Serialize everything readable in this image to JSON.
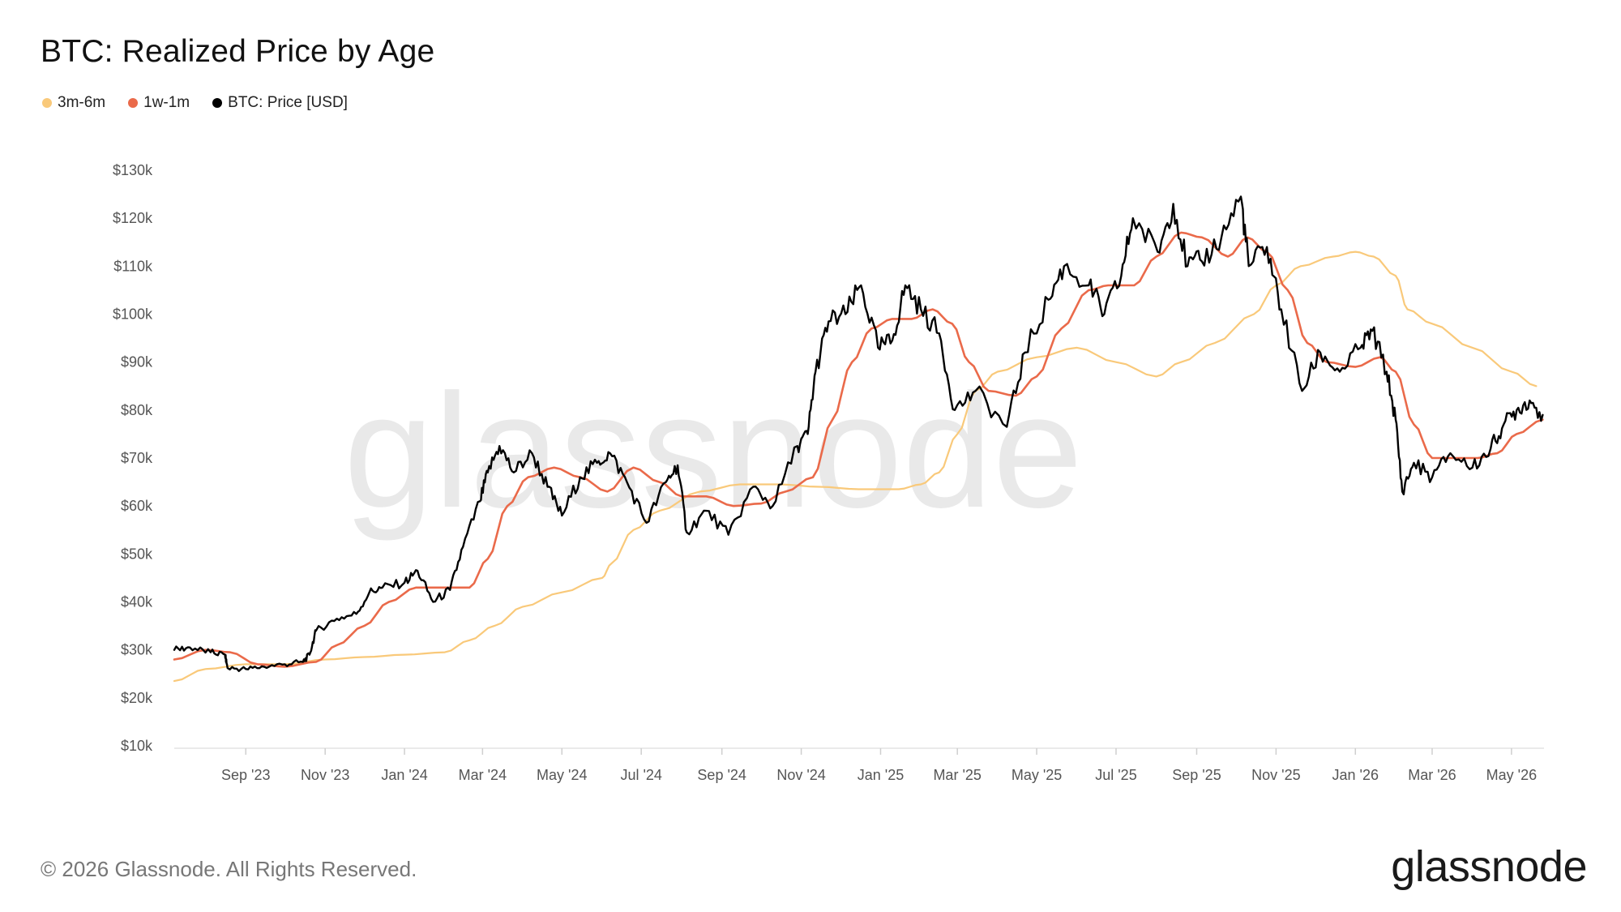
{
  "title": "BTC: Realized Price by Age",
  "legend": [
    {
      "label": "3m-6m",
      "color": "#f9c97a"
    },
    {
      "label": "1w-1m",
      "color": "#ea6a4a"
    },
    {
      "label": "BTC: Price [USD]",
      "color": "#000000"
    }
  ],
  "watermark": "glassnode",
  "footer": {
    "copyright": "© 2026 Glassnode. All Rights Reserved.",
    "logo": "glassnode"
  },
  "chart_data": {
    "type": "line",
    "title": "BTC: Realized Price by Age",
    "x_unit": "month",
    "x_start": "2023-07",
    "x_end": "2026-05",
    "ylim": [
      10000,
      130000
    ],
    "y_ticks": [
      {
        "value": 10000,
        "label": "$10k"
      },
      {
        "value": 20000,
        "label": "$20k"
      },
      {
        "value": 30000,
        "label": "$30k"
      },
      {
        "value": 40000,
        "label": "$40k"
      },
      {
        "value": 50000,
        "label": "$50k"
      },
      {
        "value": 60000,
        "label": "$60k"
      },
      {
        "value": 70000,
        "label": "$70k"
      },
      {
        "value": 80000,
        "label": "$80k"
      },
      {
        "value": 90000,
        "label": "$90k"
      },
      {
        "value": 100000,
        "label": "$100k"
      },
      {
        "value": 110000,
        "label": "$110k"
      },
      {
        "value": 120000,
        "label": "$120k"
      },
      {
        "value": 130000,
        "label": "$130k"
      }
    ],
    "x_ticks": [
      {
        "value": "2023-09",
        "label": "Sep '23"
      },
      {
        "value": "2023-11",
        "label": "Nov '23"
      },
      {
        "value": "2024-01",
        "label": "Jan '24"
      },
      {
        "value": "2024-03",
        "label": "Mar '24"
      },
      {
        "value": "2024-05",
        "label": "May '24"
      },
      {
        "value": "2024-07",
        "label": "Jul '24"
      },
      {
        "value": "2024-09",
        "label": "Sep '24"
      },
      {
        "value": "2024-11",
        "label": "Nov '24"
      },
      {
        "value": "2025-01",
        "label": "Jan '25"
      },
      {
        "value": "2025-03",
        "label": "Mar '25"
      },
      {
        "value": "2025-05",
        "label": "May '25"
      },
      {
        "value": "2025-07",
        "label": "Jul '25"
      },
      {
        "value": "2025-09",
        "label": "Sep '25"
      },
      {
        "value": "2025-11",
        "label": "Nov '25"
      },
      {
        "value": "2026-01",
        "label": "Jan '26"
      },
      {
        "value": "2026-03",
        "label": "Mar '26"
      },
      {
        "value": "2026-05",
        "label": "May '26"
      }
    ],
    "grid": false,
    "legend_position": "top-left",
    "series": [
      {
        "name": "3m-6m",
        "color": "#f9c97a",
        "width": 2.2,
        "points": [
          [
            "2023-07-08",
            23500
          ],
          [
            "2023-08-01",
            26000
          ],
          [
            "2023-09-01",
            27000
          ],
          [
            "2023-10-01",
            27000
          ],
          [
            "2023-11-01",
            28000
          ],
          [
            "2023-12-01",
            28500
          ],
          [
            "2024-01-01",
            29000
          ],
          [
            "2024-02-01",
            29500
          ],
          [
            "2024-02-20",
            32000
          ],
          [
            "2024-03-10",
            35000
          ],
          [
            "2024-04-01",
            39000
          ],
          [
            "2024-05-01",
            42000
          ],
          [
            "2024-06-01",
            45000
          ],
          [
            "2024-06-08",
            48000
          ],
          [
            "2024-06-25",
            55000
          ],
          [
            "2024-07-15",
            59000
          ],
          [
            "2024-08-15",
            63000
          ],
          [
            "2024-09-15",
            64500
          ],
          [
            "2024-10-15",
            64500
          ],
          [
            "2024-11-15",
            64000
          ],
          [
            "2024-12-15",
            63500
          ],
          [
            "2025-01-15",
            63500
          ],
          [
            "2025-02-01",
            64500
          ],
          [
            "2025-02-15",
            67000
          ],
          [
            "2025-03-01",
            75000
          ],
          [
            "2025-03-15",
            84000
          ],
          [
            "2025-04-01",
            88000
          ],
          [
            "2025-05-01",
            91000
          ],
          [
            "2025-06-01",
            93000
          ],
          [
            "2025-07-01",
            90000
          ],
          [
            "2025-08-01",
            87000
          ],
          [
            "2025-08-20",
            90000
          ],
          [
            "2025-09-15",
            94000
          ],
          [
            "2025-10-15",
            100000
          ],
          [
            "2025-11-01",
            106000
          ],
          [
            "2025-11-20",
            110000
          ],
          [
            "2025-12-15",
            112000
          ],
          [
            "2026-01-01",
            113000
          ],
          [
            "2026-01-15",
            112000
          ],
          [
            "2026-02-01",
            108000
          ],
          [
            "2026-02-10",
            101000
          ],
          [
            "2026-03-01",
            98000
          ],
          [
            "2026-04-01",
            93000
          ],
          [
            "2026-05-01",
            88000
          ],
          [
            "2026-05-20",
            85000
          ]
        ]
      },
      {
        "name": "1w-1m",
        "color": "#ea6a4a",
        "width": 2.6,
        "points": [
          [
            "2023-07-08",
            28000
          ],
          [
            "2023-08-01",
            30000
          ],
          [
            "2023-08-20",
            29500
          ],
          [
            "2023-09-10",
            27000
          ],
          [
            "2023-10-01",
            26500
          ],
          [
            "2023-10-25",
            27500
          ],
          [
            "2023-11-10",
            31000
          ],
          [
            "2023-12-01",
            35000
          ],
          [
            "2023-12-20",
            40000
          ],
          [
            "2024-01-10",
            43000
          ],
          [
            "2024-01-30",
            43000
          ],
          [
            "2024-02-20",
            43000
          ],
          [
            "2024-03-05",
            49000
          ],
          [
            "2024-03-20",
            60000
          ],
          [
            "2024-04-05",
            66000
          ],
          [
            "2024-04-25",
            68000
          ],
          [
            "2024-05-15",
            66000
          ],
          [
            "2024-06-05",
            63000
          ],
          [
            "2024-06-25",
            68000
          ],
          [
            "2024-07-15",
            65000
          ],
          [
            "2024-08-01",
            62000
          ],
          [
            "2024-08-20",
            62000
          ],
          [
            "2024-09-10",
            60000
          ],
          [
            "2024-10-01",
            60500
          ],
          [
            "2024-10-20",
            63000
          ],
          [
            "2024-11-10",
            66000
          ],
          [
            "2024-11-25",
            78000
          ],
          [
            "2024-12-10",
            90000
          ],
          [
            "2024-12-25",
            97000
          ],
          [
            "2025-01-10",
            99000
          ],
          [
            "2025-01-25",
            99000
          ],
          [
            "2025-02-10",
            101000
          ],
          [
            "2025-02-25",
            98000
          ],
          [
            "2025-03-10",
            90000
          ],
          [
            "2025-03-25",
            84000
          ],
          [
            "2025-04-15",
            83000
          ],
          [
            "2025-05-01",
            87000
          ],
          [
            "2025-05-20",
            97000
          ],
          [
            "2025-06-10",
            105000
          ],
          [
            "2025-06-25",
            106000
          ],
          [
            "2025-07-15",
            106000
          ],
          [
            "2025-08-01",
            112000
          ],
          [
            "2025-08-20",
            117000
          ],
          [
            "2025-09-05",
            116000
          ],
          [
            "2025-09-25",
            112000
          ],
          [
            "2025-10-10",
            116000
          ],
          [
            "2025-10-25",
            113000
          ],
          [
            "2025-11-10",
            105000
          ],
          [
            "2025-11-25",
            94000
          ],
          [
            "2025-12-10",
            90000
          ],
          [
            "2026-01-01",
            89000
          ],
          [
            "2026-01-20",
            91000
          ],
          [
            "2026-02-01",
            88000
          ],
          [
            "2026-02-15",
            77000
          ],
          [
            "2026-03-01",
            70000
          ],
          [
            "2026-03-20",
            70000
          ],
          [
            "2026-04-05",
            70000
          ],
          [
            "2026-04-20",
            71000
          ],
          [
            "2026-05-05",
            75000
          ],
          [
            "2026-05-25",
            78000
          ]
        ]
      },
      {
        "name": "BTC: Price [USD]",
        "color": "#000000",
        "width": 2.4,
        "points": [
          [
            "2023-07-08",
            30000
          ],
          [
            "2023-07-20",
            30500
          ],
          [
            "2023-08-05",
            29500
          ],
          [
            "2023-08-16",
            29000
          ],
          [
            "2023-08-18",
            26200
          ],
          [
            "2023-09-01",
            26000
          ],
          [
            "2023-09-15",
            26500
          ],
          [
            "2023-10-01",
            27000
          ],
          [
            "2023-10-15",
            27500
          ],
          [
            "2023-10-20",
            29000
          ],
          [
            "2023-10-25",
            34000
          ],
          [
            "2023-11-10",
            36500
          ],
          [
            "2023-11-25",
            37500
          ],
          [
            "2023-12-05",
            42000
          ],
          [
            "2023-12-15",
            43000
          ],
          [
            "2024-01-01",
            44000
          ],
          [
            "2024-01-11",
            46500
          ],
          [
            "2024-01-23",
            40000
          ],
          [
            "2024-02-05",
            42500
          ],
          [
            "2024-02-15",
            51500
          ],
          [
            "2024-02-28",
            61000
          ],
          [
            "2024-03-05",
            67000
          ],
          [
            "2024-03-14",
            72500
          ],
          [
            "2024-03-25",
            67000
          ],
          [
            "2024-04-08",
            71000
          ],
          [
            "2024-04-20",
            64000
          ],
          [
            "2024-05-01",
            58000
          ],
          [
            "2024-05-15",
            66000
          ],
          [
            "2024-05-28",
            69000
          ],
          [
            "2024-06-07",
            71000
          ],
          [
            "2024-06-20",
            65000
          ],
          [
            "2024-07-05",
            56500
          ],
          [
            "2024-07-20",
            65000
          ],
          [
            "2024-07-29",
            68500
          ],
          [
            "2024-08-05",
            54500
          ],
          [
            "2024-08-20",
            59000
          ],
          [
            "2024-09-06",
            54000
          ],
          [
            "2024-09-25",
            64000
          ],
          [
            "2024-10-10",
            60000
          ],
          [
            "2024-10-29",
            72500
          ],
          [
            "2024-11-06",
            75000
          ],
          [
            "2024-11-12",
            88000
          ],
          [
            "2024-11-22",
            98500
          ],
          [
            "2024-12-05",
            100000
          ],
          [
            "2024-12-17",
            106000
          ],
          [
            "2024-12-30",
            93000
          ],
          [
            "2025-01-10",
            94500
          ],
          [
            "2025-01-20",
            106000
          ],
          [
            "2025-02-01",
            101000
          ],
          [
            "2025-02-15",
            96000
          ],
          [
            "2025-02-27",
            80000
          ],
          [
            "2025-03-15",
            84000
          ],
          [
            "2025-04-08",
            76500
          ],
          [
            "2025-04-22",
            92000
          ],
          [
            "2025-05-10",
            103000
          ],
          [
            "2025-05-22",
            110000
          ],
          [
            "2025-06-10",
            106000
          ],
          [
            "2025-06-22",
            100000
          ],
          [
            "2025-07-05",
            108000
          ],
          [
            "2025-07-14",
            120000
          ],
          [
            "2025-08-02",
            113000
          ],
          [
            "2025-08-14",
            123000
          ],
          [
            "2025-08-25",
            110000
          ],
          [
            "2025-09-05",
            111000
          ],
          [
            "2025-09-20",
            116000
          ],
          [
            "2025-10-05",
            124500
          ],
          [
            "2025-10-11",
            110000
          ],
          [
            "2025-10-25",
            114000
          ],
          [
            "2025-11-05",
            101000
          ],
          [
            "2025-11-21",
            84000
          ],
          [
            "2025-12-05",
            92000
          ],
          [
            "2025-12-20",
            88000
          ],
          [
            "2026-01-05",
            93000
          ],
          [
            "2026-01-14",
            96500
          ],
          [
            "2026-01-25",
            88000
          ],
          [
            "2026-02-01",
            78000
          ],
          [
            "2026-02-06",
            63000
          ],
          [
            "2026-02-15",
            69000
          ],
          [
            "2026-03-01",
            66000
          ],
          [
            "2026-03-15",
            71000
          ],
          [
            "2026-04-01",
            68000
          ],
          [
            "2026-04-15",
            72000
          ],
          [
            "2026-04-25",
            77000
          ],
          [
            "2026-05-05",
            80000
          ],
          [
            "2026-05-15",
            82000
          ],
          [
            "2026-05-25",
            79000
          ]
        ]
      }
    ]
  }
}
